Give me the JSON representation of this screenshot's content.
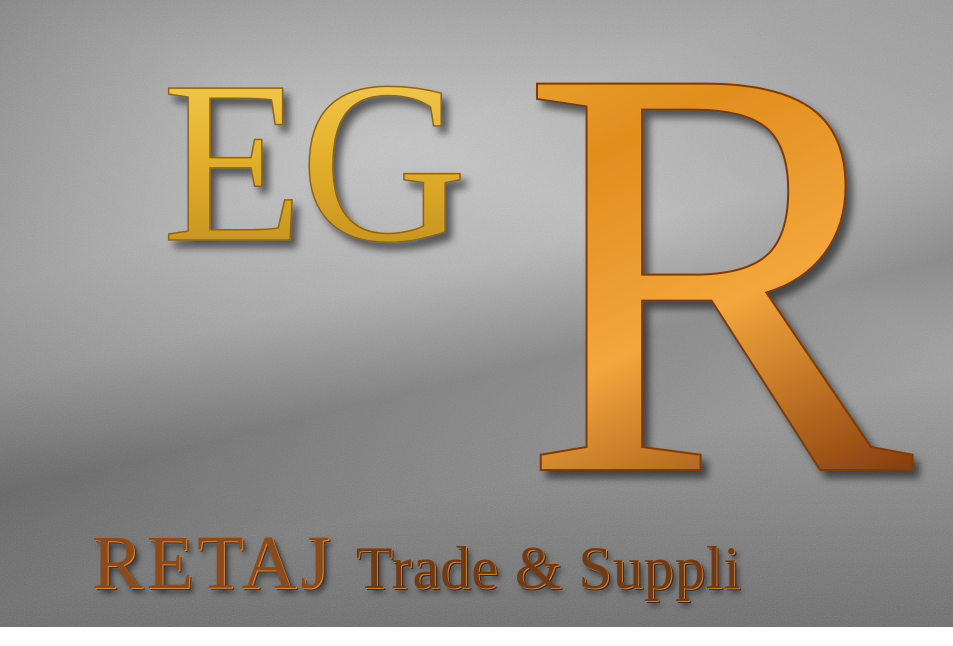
{
  "logo": {
    "monogram_letters": "EG",
    "monogram_initial": "R",
    "brand_name": "RETAJ",
    "tagline": "Trade & Suppli"
  },
  "colors": {
    "gold_light": "#f2c84b",
    "gold_dark": "#b9861a",
    "copper_light": "#f0a23a",
    "copper_dark": "#8a3f0e",
    "wall_gray": "#a6a6a6"
  }
}
